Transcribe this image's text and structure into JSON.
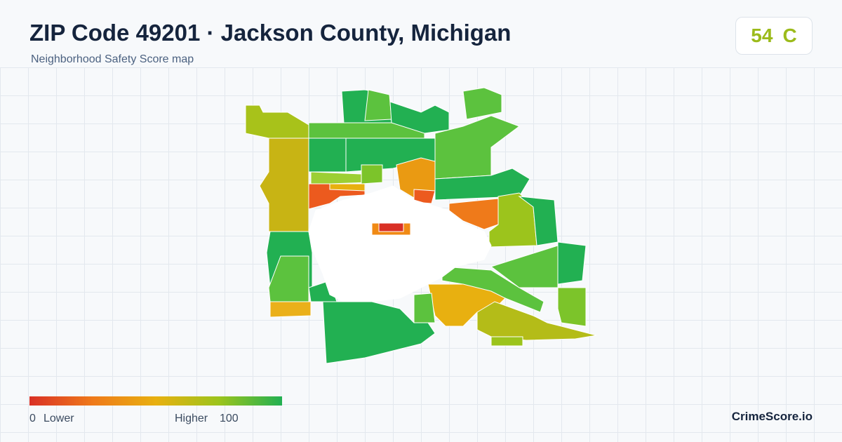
{
  "header": {
    "title": "ZIP Code 49201 · Jackson County, Michigan",
    "subtitle": "Neighborhood Safety Score map"
  },
  "score": {
    "value": 54,
    "grade": "C"
  },
  "legend": {
    "min": 0,
    "min_label": "Lower",
    "max_label": "Higher",
    "max": 100
  },
  "brand": "CrimeScore.io"
}
